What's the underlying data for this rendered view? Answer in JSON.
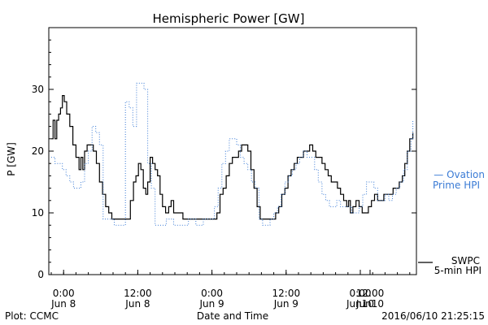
{
  "chart_data": {
    "type": "line",
    "title": "Hemispheric Power [GW]",
    "ylabel": "P [GW]",
    "xlabel": "Date and Time",
    "ylim": [
      0,
      40
    ],
    "yticks": [
      0,
      10,
      20,
      30
    ],
    "x_unit": "hours since 2016-06-07 22:00",
    "xlim": [
      0,
      58.5
    ],
    "xticks": [
      {
        "x": 2,
        "line1": "0:00",
        "line2": "Jun 8"
      },
      {
        "x": 14,
        "line1": "12:00",
        "line2": "Jun 8"
      },
      {
        "x": 26,
        "line1": "0:00",
        "line2": "Jun 9"
      },
      {
        "x": 38,
        "line1": "12:00",
        "line2": "Jun 9"
      },
      {
        "x": 50,
        "line1": "0:00",
        "line2": "Jun10"
      },
      {
        "x": 62,
        "line1": "12:00",
        "line2": "Jun10"
      }
    ],
    "series": [
      {
        "name": "SWPC 5-min HPI",
        "legend": [
          "SWPC",
          "5-min HPI"
        ],
        "color": "#000000",
        "style": "solid",
        "points": [
          [
            0,
            22
          ],
          [
            0.3,
            25
          ],
          [
            0.6,
            22
          ],
          [
            0.9,
            25
          ],
          [
            1.2,
            26
          ],
          [
            1.5,
            27
          ],
          [
            1.8,
            29
          ],
          [
            2.1,
            28
          ],
          [
            2.5,
            26
          ],
          [
            3,
            24
          ],
          [
            3.5,
            21
          ],
          [
            4,
            19
          ],
          [
            4.5,
            17
          ],
          [
            4.8,
            19
          ],
          [
            5.1,
            17
          ],
          [
            5.4,
            20
          ],
          [
            5.8,
            21
          ],
          [
            6.3,
            21
          ],
          [
            6.8,
            20
          ],
          [
            7.3,
            18
          ],
          [
            7.8,
            15
          ],
          [
            8.3,
            13
          ],
          [
            8.8,
            11
          ],
          [
            9.3,
            10
          ],
          [
            9.8,
            9
          ],
          [
            11,
            9
          ],
          [
            12.3,
            9
          ],
          [
            12.8,
            12
          ],
          [
            13.3,
            15
          ],
          [
            13.7,
            16
          ],
          [
            14.1,
            18
          ],
          [
            14.5,
            17
          ],
          [
            14.9,
            14
          ],
          [
            15.3,
            13
          ],
          [
            15.6,
            15
          ],
          [
            16,
            19
          ],
          [
            16.4,
            18
          ],
          [
            16.8,
            17
          ],
          [
            17.2,
            16
          ],
          [
            17.6,
            13
          ],
          [
            18,
            11
          ],
          [
            18.5,
            10
          ],
          [
            19,
            11
          ],
          [
            19.4,
            12
          ],
          [
            19.8,
            10
          ],
          [
            20.2,
            10
          ],
          [
            20.8,
            10
          ],
          [
            21.3,
            9
          ],
          [
            22.5,
            9
          ],
          [
            24,
            9
          ],
          [
            25.5,
            9
          ],
          [
            26.8,
            10
          ],
          [
            27.3,
            13
          ],
          [
            27.8,
            14
          ],
          [
            28.3,
            16
          ],
          [
            28.8,
            18
          ],
          [
            29.3,
            19
          ],
          [
            29.8,
            19
          ],
          [
            30.3,
            20
          ],
          [
            30.8,
            21
          ],
          [
            31.3,
            21
          ],
          [
            31.8,
            20
          ],
          [
            32.3,
            17
          ],
          [
            32.8,
            14
          ],
          [
            33.3,
            11
          ],
          [
            33.8,
            9
          ],
          [
            34.5,
            9
          ],
          [
            35.5,
            9
          ],
          [
            36.3,
            10
          ],
          [
            36.8,
            11
          ],
          [
            37.3,
            13
          ],
          [
            37.8,
            14
          ],
          [
            38.3,
            16
          ],
          [
            38.8,
            17
          ],
          [
            39.3,
            18
          ],
          [
            39.8,
            19
          ],
          [
            40.3,
            19
          ],
          [
            40.8,
            20
          ],
          [
            41.3,
            20
          ],
          [
            41.8,
            21
          ],
          [
            42.3,
            20
          ],
          [
            42.8,
            19
          ],
          [
            43.3,
            19
          ],
          [
            43.8,
            18
          ],
          [
            44.3,
            17
          ],
          [
            44.8,
            16
          ],
          [
            45.3,
            15
          ],
          [
            45.8,
            15
          ],
          [
            46.3,
            14
          ],
          [
            46.8,
            13
          ],
          [
            47.3,
            12
          ],
          [
            47.8,
            11
          ],
          [
            48.1,
            12
          ],
          [
            48.4,
            10
          ],
          [
            48.8,
            11
          ],
          [
            49.3,
            12
          ],
          [
            49.8,
            11
          ],
          [
            50.3,
            10
          ],
          [
            50.8,
            10
          ],
          [
            51.3,
            11
          ],
          [
            51.8,
            12
          ],
          [
            52.3,
            13
          ],
          [
            52.8,
            12
          ],
          [
            53.3,
            12
          ],
          [
            53.8,
            13
          ],
          [
            54.3,
            13
          ],
          [
            54.8,
            13
          ],
          [
            55.3,
            14
          ],
          [
            55.8,
            14
          ],
          [
            56.3,
            15
          ],
          [
            56.8,
            16
          ],
          [
            57.2,
            18
          ],
          [
            57.6,
            20
          ],
          [
            58,
            22
          ],
          [
            58.5,
            23
          ]
        ]
      },
      {
        "name": "Ovation Prime HPI",
        "legend": [
          "— Ovation",
          "Prime HPI"
        ],
        "color": "#3a7bd5",
        "style": "dotted",
        "points": [
          [
            0,
            19
          ],
          [
            0.6,
            18
          ],
          [
            1.2,
            18
          ],
          [
            1.8,
            17
          ],
          [
            2.4,
            16
          ],
          [
            3,
            15
          ],
          [
            3.6,
            14
          ],
          [
            4.2,
            14
          ],
          [
            4.8,
            15
          ],
          [
            5.4,
            18
          ],
          [
            6,
            20
          ],
          [
            6.6,
            24
          ],
          [
            7.2,
            23
          ],
          [
            7.8,
            21
          ],
          [
            8.4,
            9
          ],
          [
            9,
            9
          ],
          [
            9.6,
            9
          ],
          [
            10.2,
            8
          ],
          [
            10.8,
            8
          ],
          [
            11.4,
            8
          ],
          [
            12,
            28
          ],
          [
            12.6,
            27
          ],
          [
            13.2,
            24
          ],
          [
            13.8,
            31
          ],
          [
            14.4,
            31
          ],
          [
            15,
            30
          ],
          [
            15.6,
            18
          ],
          [
            16.2,
            14
          ],
          [
            16.8,
            8
          ],
          [
            17.4,
            8
          ],
          [
            18,
            8
          ],
          [
            18.6,
            9
          ],
          [
            19.2,
            9
          ],
          [
            19.8,
            8
          ],
          [
            20.4,
            8
          ],
          [
            21,
            8
          ],
          [
            21.6,
            8
          ],
          [
            22.2,
            9
          ],
          [
            22.8,
            9
          ],
          [
            23.4,
            8
          ],
          [
            24,
            8
          ],
          [
            24.6,
            9
          ],
          [
            25.2,
            9
          ],
          [
            25.8,
            9
          ],
          [
            26.4,
            11
          ],
          [
            27,
            14
          ],
          [
            27.6,
            18
          ],
          [
            28.2,
            20
          ],
          [
            28.8,
            22
          ],
          [
            29.4,
            22
          ],
          [
            30,
            21
          ],
          [
            30.6,
            19
          ],
          [
            31.2,
            18
          ],
          [
            31.8,
            17
          ],
          [
            32.4,
            15
          ],
          [
            33,
            14
          ],
          [
            33.6,
            9
          ],
          [
            34.2,
            8
          ],
          [
            34.8,
            8
          ],
          [
            35.4,
            9
          ],
          [
            36,
            10
          ],
          [
            36.6,
            11
          ],
          [
            37.2,
            13
          ],
          [
            37.8,
            15
          ],
          [
            38.4,
            16
          ],
          [
            39,
            17
          ],
          [
            39.6,
            18
          ],
          [
            40.2,
            19
          ],
          [
            40.8,
            20
          ],
          [
            41.4,
            19
          ],
          [
            42,
            19
          ],
          [
            42.6,
            17
          ],
          [
            43.2,
            15
          ],
          [
            43.8,
            13
          ],
          [
            44.4,
            12
          ],
          [
            45,
            11
          ],
          [
            45.6,
            11
          ],
          [
            46.2,
            12
          ],
          [
            46.8,
            11
          ],
          [
            47.4,
            11
          ],
          [
            48,
            11
          ],
          [
            48.6,
            10
          ],
          [
            49.2,
            10
          ],
          [
            49.8,
            11
          ],
          [
            50.4,
            13
          ],
          [
            51,
            15
          ],
          [
            51.6,
            15
          ],
          [
            52.2,
            14
          ],
          [
            52.8,
            12
          ],
          [
            53.4,
            12
          ],
          [
            54,
            13
          ],
          [
            54.6,
            12
          ],
          [
            55.2,
            13
          ],
          [
            55.8,
            14
          ],
          [
            56.4,
            15
          ],
          [
            57,
            17
          ],
          [
            57.6,
            20
          ],
          [
            58.2,
            22
          ],
          [
            58.5,
            25
          ]
        ]
      }
    ],
    "footer_left": "Plot: CCMC",
    "footer_right": "2016/06/10 21:25:15"
  }
}
